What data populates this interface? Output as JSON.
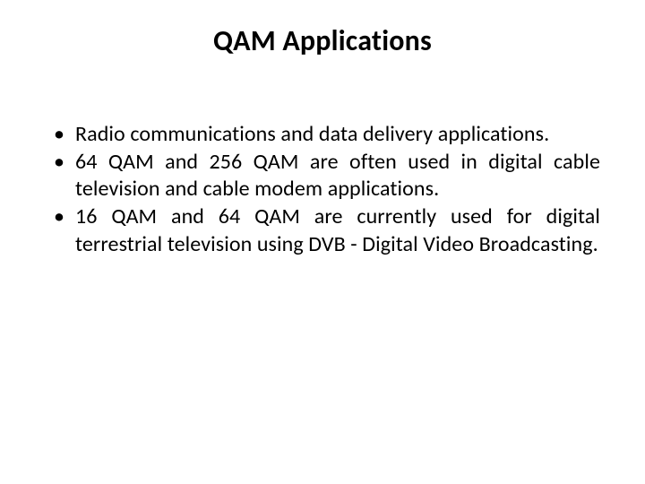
{
  "slide": {
    "title": "QAM Applications",
    "bullets": [
      "Radio communications and data delivery applications.",
      "64 QAM and 256 QAM are often used in digital cable television and cable modem applications.",
      " 16 QAM and 64 QAM are currently used for digital terrestrial television using DVB - Digital Video Broadcasting."
    ]
  },
  "style": {
    "background_color": "#ffffff",
    "text_color": "#000000",
    "title_fontsize": 32,
    "title_fontweight": 700,
    "body_fontsize": 24,
    "font_family": "Calibri",
    "bullet_glyph": "•",
    "text_align_body": "justify"
  }
}
